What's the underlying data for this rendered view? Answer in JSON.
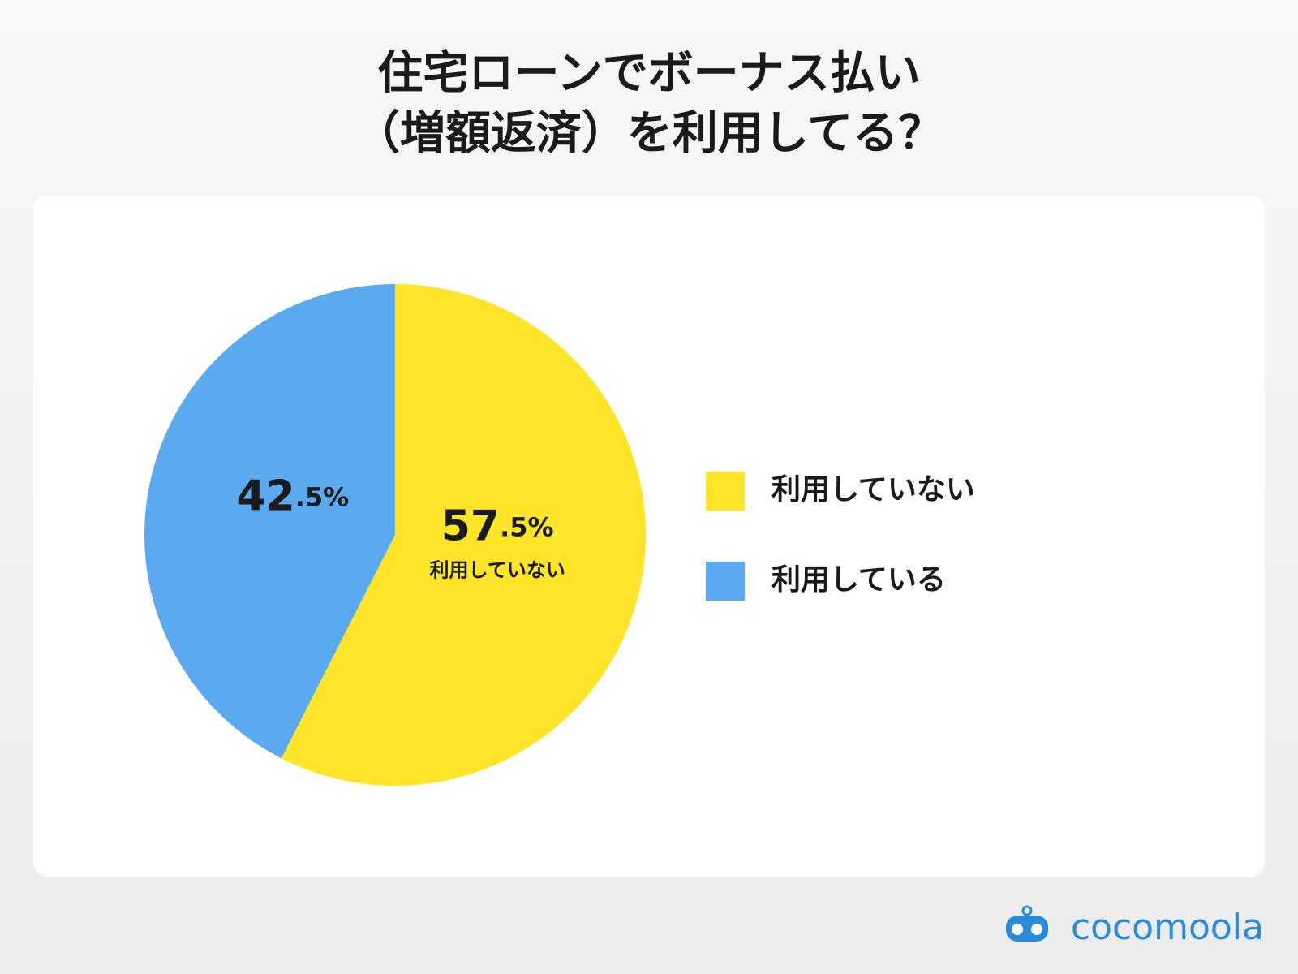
{
  "chart_data": {
    "type": "pie",
    "title": [
      "住宅ローンでボーナス払い",
      "（増額返済）を利用してる？"
    ],
    "categories": [
      "利用していない",
      "利用している"
    ],
    "values": [
      57.5,
      42.5
    ],
    "value_labels": [
      "57.5%",
      "42.5%"
    ],
    "colors": [
      "#FFE52A",
      "#5BAAF0"
    ],
    "legend": "right"
  },
  "logo": "cocomoola"
}
